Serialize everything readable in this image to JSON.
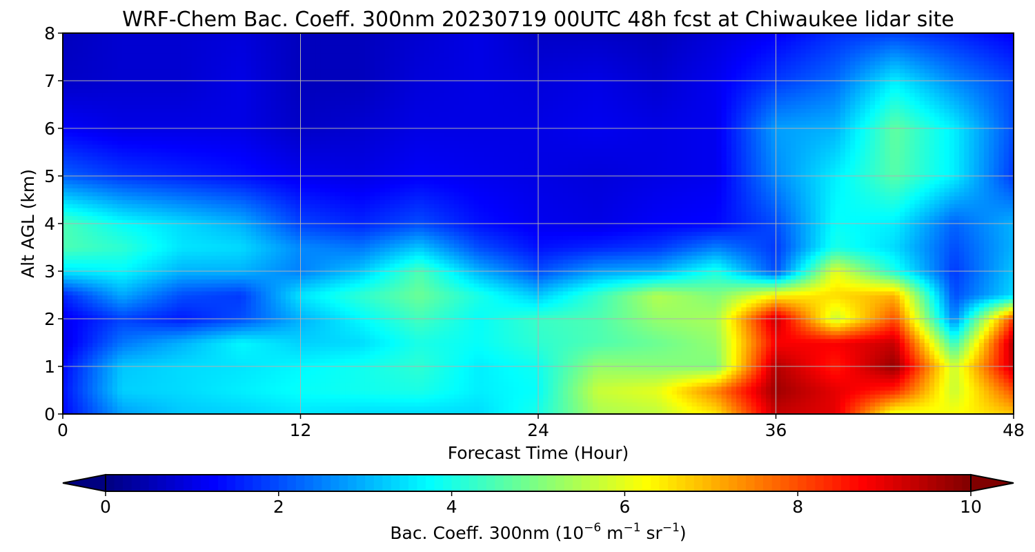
{
  "chart_data": {
    "type": "heatmap",
    "title": "WRF-Chem Bac. Coeff. 300nm  20230719 00UTC 48h fcst at Chiwaukee lidar site",
    "xlabel": "Forecast Time (Hour)",
    "ylabel": "Alt AGL (km)",
    "xlim": [
      0,
      48
    ],
    "ylim": [
      0,
      8
    ],
    "xticks": [
      "0",
      "12",
      "24",
      "36",
      "48"
    ],
    "yticks": [
      "0",
      "1",
      "2",
      "3",
      "4",
      "5",
      "6",
      "7",
      "8"
    ],
    "grid": true,
    "colormap": "jet",
    "colorbar": {
      "orientation": "horizontal",
      "placement": "bottom",
      "range": [
        0,
        10
      ],
      "extend": "both",
      "ticks": [
        "0",
        "2",
        "4",
        "6",
        "8",
        "10"
      ],
      "label_main": "Bac. Coeff. 300nm  (10",
      "label_exp1": "−6",
      "label_mid": " m",
      "label_exp2": "−1",
      "label_mid2": " sr",
      "label_exp3": "−1",
      "label_end": ")"
    },
    "x_hours": [
      0,
      3,
      6,
      9,
      12,
      15,
      18,
      21,
      24,
      27,
      30,
      33,
      36,
      39,
      42,
      45,
      48
    ],
    "z_km": [
      0,
      0.5,
      1,
      1.5,
      2,
      2.5,
      3,
      3.5,
      4,
      5,
      6,
      7,
      8
    ],
    "values": [
      [
        1.3,
        2.8,
        3.2,
        3.3,
        3.5,
        3.4,
        3.4,
        3.4,
        4.0,
        5.4,
        5.6,
        6.5,
        9.3,
        9.0,
        6.0,
        6.2,
        6.8
      ],
      [
        1.4,
        3.3,
        3.4,
        3.6,
        3.8,
        3.9,
        4.0,
        3.6,
        3.8,
        5.7,
        6.0,
        7.5,
        9.7,
        9.0,
        8.4,
        5.7,
        8.0
      ],
      [
        1.3,
        3.2,
        3.4,
        3.5,
        3.7,
        3.9,
        4.2,
        3.6,
        3.9,
        5.2,
        5.1,
        5.0,
        9.5,
        8.5,
        9.8,
        5.7,
        9.3
      ],
      [
        1.0,
        2.4,
        3.0,
        3.7,
        3.3,
        3.4,
        4.0,
        3.8,
        4.2,
        4.5,
        4.8,
        5.2,
        8.8,
        8.8,
        9.3,
        4.2,
        9.5
      ],
      [
        1.1,
        1.9,
        1.5,
        2.0,
        3.0,
        3.7,
        4.4,
        3.8,
        4.3,
        4.5,
        5.2,
        5.4,
        9.3,
        5.7,
        8.0,
        2.5,
        8.2
      ],
      [
        1.6,
        2.9,
        2.0,
        1.8,
        3.5,
        4.2,
        4.8,
        4.0,
        3.2,
        4.3,
        5.5,
        5.0,
        6.3,
        6.6,
        7.0,
        2.0,
        3.4
      ],
      [
        3.5,
        3.7,
        3.0,
        3.0,
        2.5,
        3.2,
        4.5,
        3.0,
        2.0,
        2.8,
        3.0,
        4.0,
        2.0,
        6.0,
        4.0,
        1.8,
        3.2
      ],
      [
        4.5,
        4.2,
        3.5,
        3.4,
        2.6,
        2.4,
        3.2,
        2.0,
        1.4,
        1.6,
        1.8,
        2.5,
        1.8,
        4.0,
        3.4,
        2.0,
        3.0
      ],
      [
        4.5,
        3.8,
        3.4,
        3.0,
        1.9,
        1.6,
        2.0,
        1.4,
        1.1,
        1.0,
        1.2,
        1.3,
        2.0,
        3.8,
        3.6,
        2.2,
        3.0
      ],
      [
        2.2,
        1.8,
        1.6,
        1.4,
        1.1,
        1.0,
        1.2,
        1.1,
        1.0,
        0.9,
        1.0,
        1.1,
        2.6,
        3.6,
        4.6,
        3.6,
        1.8
      ],
      [
        1.2,
        1.0,
        1.0,
        1.0,
        0.7,
        0.8,
        1.0,
        1.0,
        1.0,
        1.1,
        1.0,
        1.1,
        2.8,
        3.0,
        4.7,
        3.6,
        2.0
      ],
      [
        0.7,
        0.8,
        0.8,
        1.0,
        0.6,
        0.6,
        0.9,
        1.0,
        0.9,
        1.0,
        0.8,
        1.1,
        1.8,
        2.3,
        3.6,
        2.6,
        1.9
      ],
      [
        0.6,
        0.8,
        0.8,
        0.9,
        0.6,
        0.6,
        0.8,
        1.0,
        0.7,
        0.7,
        0.6,
        0.9,
        1.2,
        1.7,
        1.9,
        1.6,
        1.2
      ]
    ]
  }
}
